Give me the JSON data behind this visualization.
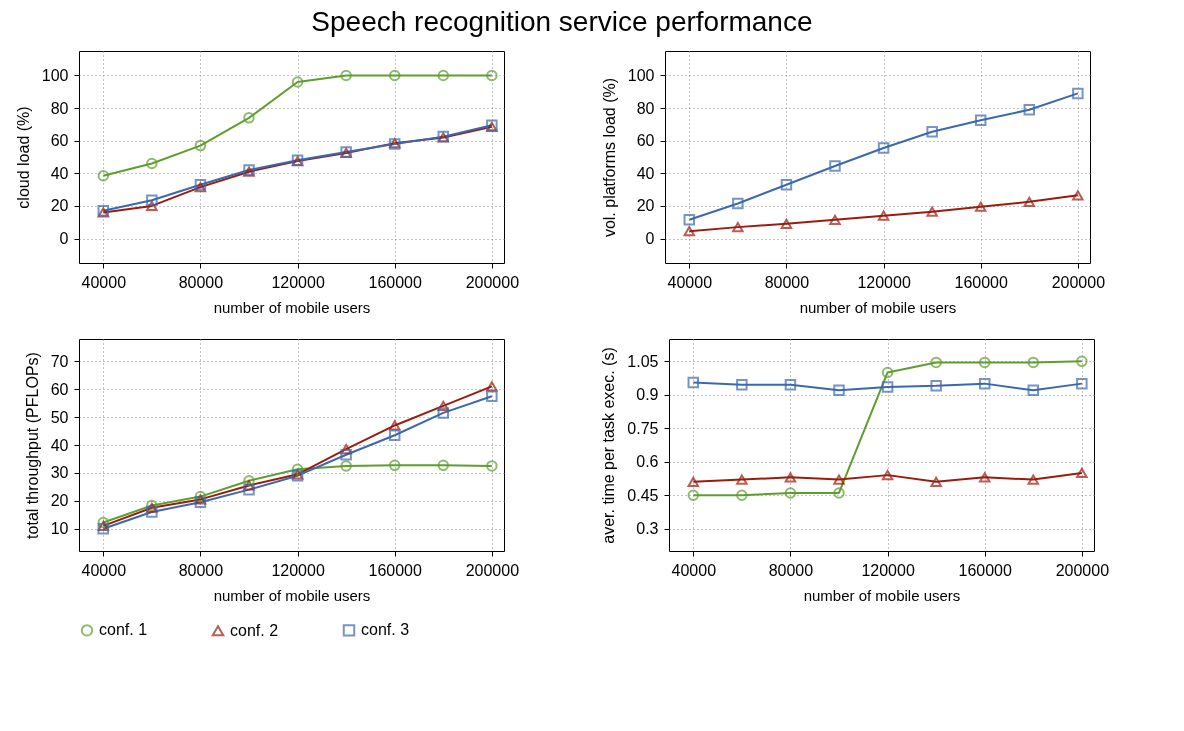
{
  "chart_data": [
    {
      "type": "line",
      "title": "Speech recognition service performance",
      "xlabel": "number of mobile users",
      "ylabel": "cloud load (%)",
      "x": [
        40000,
        60000,
        80000,
        100000,
        120000,
        140000,
        160000,
        180000,
        200000
      ],
      "xlim": [
        30000,
        205000
      ],
      "xticks": [
        40000,
        80000,
        120000,
        160000,
        200000
      ],
      "ylim": [
        -15,
        115
      ],
      "yticks": [
        0,
        20,
        40,
        60,
        80,
        100
      ],
      "grid": true,
      "line_style": "solid",
      "legend": "bottom",
      "series": [
        {
          "name": "conf. 1",
          "color": "#5e9e2e",
          "marker": "circle",
          "values": [
            38.5,
            46,
            57,
            74,
            96,
            100,
            100,
            100,
            100
          ]
        },
        {
          "name": "conf. 2",
          "color": "#9b1c0e",
          "marker": "triangle",
          "values": [
            16,
            20,
            31.5,
            41,
            47.5,
            52.5,
            58.5,
            62,
            68.5
          ]
        },
        {
          "name": "conf. 3",
          "color": "#3c68b0",
          "marker": "square",
          "values": [
            17,
            23.5,
            33,
            42,
            48,
            53,
            58,
            62.5,
            69.5
          ]
        }
      ]
    },
    {
      "type": "line",
      "xlabel": "number of mobile users",
      "ylabel": "vol. platforms load (%)",
      "x": [
        40000,
        60000,
        80000,
        100000,
        120000,
        140000,
        160000,
        180000,
        200000
      ],
      "xlim": [
        30000,
        205000
      ],
      "xticks": [
        40000,
        80000,
        120000,
        160000,
        200000
      ],
      "ylim": [
        -15,
        115
      ],
      "yticks": [
        0,
        20,
        40,
        60,
        80,
        100
      ],
      "grid": true,
      "line_style": "solid",
      "series": [
        {
          "name": "conf. 2",
          "color": "#9b1c0e",
          "marker": "triangle",
          "values": [
            4.5,
            7,
            9,
            11.5,
            14,
            16.5,
            19.5,
            22.5,
            26.5
          ]
        },
        {
          "name": "conf. 3",
          "color": "#3c68b0",
          "marker": "square",
          "values": [
            11.5,
            21.5,
            33,
            44.5,
            55.5,
            65.5,
            72.5,
            79,
            89
          ]
        }
      ]
    },
    {
      "type": "line",
      "xlabel": "number of mobile users",
      "ylabel": "total throughput (PFLOPs)",
      "x": [
        40000,
        60000,
        80000,
        100000,
        120000,
        140000,
        160000,
        180000,
        200000
      ],
      "xlim": [
        30000,
        205000
      ],
      "xticks": [
        40000,
        80000,
        120000,
        160000,
        200000
      ],
      "ylim": [
        2,
        78
      ],
      "yticks": [
        10,
        20,
        30,
        40,
        50,
        60,
        70
      ],
      "grid": true,
      "line_style": "solid",
      "series": [
        {
          "name": "conf. 1",
          "color": "#5e9e2e",
          "marker": "circle",
          "values": [
            12.2,
            18.3,
            21.5,
            27.2,
            31.3,
            32.5,
            32.7,
            32.7,
            32.5
          ]
        },
        {
          "name": "conf. 2",
          "color": "#9b1c0e",
          "marker": "triangle",
          "values": [
            11,
            17.5,
            20.5,
            25.5,
            29.5,
            38.5,
            47,
            54,
            61
          ]
        },
        {
          "name": "conf. 3",
          "color": "#3c68b0",
          "marker": "square",
          "values": [
            10,
            16,
            19.5,
            24,
            29,
            36.5,
            43.5,
            51.5,
            57.5
          ]
        }
      ]
    },
    {
      "type": "line",
      "xlabel": "number of mobile users",
      "ylabel": "aver. time per task exec. (s)",
      "x": [
        40000,
        60000,
        80000,
        100000,
        120000,
        140000,
        160000,
        180000,
        200000
      ],
      "xlim": [
        30000,
        205000
      ],
      "xticks": [
        40000,
        80000,
        120000,
        160000,
        200000
      ],
      "ylim": [
        0.2,
        1.15
      ],
      "yticks": [
        0.3,
        0.45,
        0.6,
        0.75,
        0.9,
        1.05
      ],
      "grid": true,
      "line_style": "solid",
      "series": [
        {
          "name": "conf. 1",
          "color": "#5e9e2e",
          "marker": "circle",
          "values": [
            0.45,
            0.45,
            0.46,
            0.46,
            1.0,
            1.045,
            1.045,
            1.045,
            1.05
          ]
        },
        {
          "name": "conf. 2",
          "color": "#9b1c0e",
          "marker": "triangle",
          "values": [
            0.51,
            0.52,
            0.53,
            0.52,
            0.54,
            0.51,
            0.53,
            0.52,
            0.55
          ]
        },
        {
          "name": "conf. 3",
          "color": "#3c68b0",
          "marker": "square",
          "values": [
            0.955,
            0.945,
            0.945,
            0.92,
            0.935,
            0.94,
            0.95,
            0.92,
            0.95
          ]
        }
      ]
    }
  ]
}
